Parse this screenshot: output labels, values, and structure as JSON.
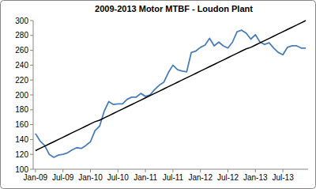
{
  "chart_data": {
    "type": "line",
    "title": "2009-2013  Motor MTBF - Loudon Plant",
    "categories": [
      "Jan-09",
      null,
      null,
      null,
      null,
      null,
      "Jul-09",
      null,
      null,
      null,
      null,
      null,
      "Jan-10",
      null,
      null,
      null,
      null,
      null,
      "Jul-10",
      null,
      null,
      null,
      null,
      null,
      "Jan-11",
      null,
      null,
      null,
      null,
      null,
      "Jul-11",
      null,
      null,
      null,
      null,
      null,
      "Jan-12",
      null,
      null,
      null,
      null,
      null,
      "Jul-12",
      null,
      null,
      null,
      null,
      null,
      "Jan-13",
      null,
      null,
      null,
      null,
      null,
      "Jul-13",
      null,
      null,
      null,
      null,
      null
    ],
    "series": [
      {
        "color": "#4a7ebb",
        "line_style": "solid",
        "values": [
          148,
          138,
          132,
          120,
          116,
          119,
          120,
          122,
          126,
          129,
          128,
          132,
          137,
          152,
          158,
          178,
          191,
          187,
          188,
          188,
          194,
          197,
          197,
          202,
          198,
          200,
          207,
          213,
          217,
          230,
          240,
          234,
          232,
          231,
          257,
          259,
          264,
          267,
          276,
          266,
          271,
          266,
          263,
          271,
          285,
          287,
          283,
          275,
          281,
          271,
          268,
          270,
          263,
          257,
          254,
          264,
          266,
          266,
          263,
          263
        ]
      },
      {
        "color": "#000000",
        "line_style": "solid",
        "values": [
          125,
          128,
          131,
          134,
          137,
          140,
          143,
          146,
          149,
          152,
          155,
          158,
          161,
          164,
          166,
          169,
          172,
          175,
          178,
          181,
          184,
          187,
          190,
          193,
          196,
          199,
          202,
          205,
          208,
          211,
          214,
          217,
          220,
          223,
          226,
          229,
          232,
          235,
          238,
          241,
          244,
          247,
          250,
          253,
          256,
          259,
          262,
          264,
          267,
          270,
          273,
          276,
          279,
          282,
          285,
          288,
          291,
          294,
          297,
          300
        ]
      }
    ],
    "ylim": [
      100,
      300
    ],
    "yticks": [
      100,
      120,
      140,
      160,
      180,
      200,
      220,
      240,
      260,
      280,
      300
    ],
    "grid": false
  }
}
